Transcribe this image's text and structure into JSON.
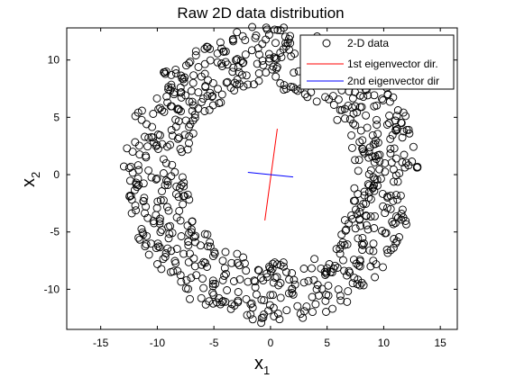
{
  "chart_data": {
    "type": "scatter",
    "title": "Raw 2D data distribution",
    "xlabel_main": "x",
    "xlabel_sub": "1",
    "ylabel_main": "x",
    "ylabel_sub": "2",
    "xlim": [
      -18,
      16.5
    ],
    "ylim": [
      -13.5,
      12.8
    ],
    "xticks": [
      -15,
      -10,
      -5,
      0,
      5,
      10,
      15
    ],
    "yticks": [
      -10,
      -5,
      0,
      5,
      10
    ],
    "grid": false,
    "legend_position": "top-right",
    "legend": [
      "2-D data",
      "1st eigenvector dir.",
      "2nd eigenvector dir"
    ],
    "series": [
      {
        "name": "2-D data",
        "marker": "open-circle",
        "color": "#000000",
        "shape": "annulus",
        "center": [
          0,
          0
        ],
        "inner_radius": 7.5,
        "outer_radius": 13,
        "count": 800
      },
      {
        "name": "1st eigenvector dir.",
        "color": "#ff0000",
        "x": [
          -0.5,
          0.6
        ],
        "y": [
          -4,
          4
        ]
      },
      {
        "name": "2nd eigenvector dir",
        "color": "#0000ff",
        "x": [
          -2,
          2
        ],
        "y": [
          0.2,
          -0.2
        ]
      }
    ]
  }
}
